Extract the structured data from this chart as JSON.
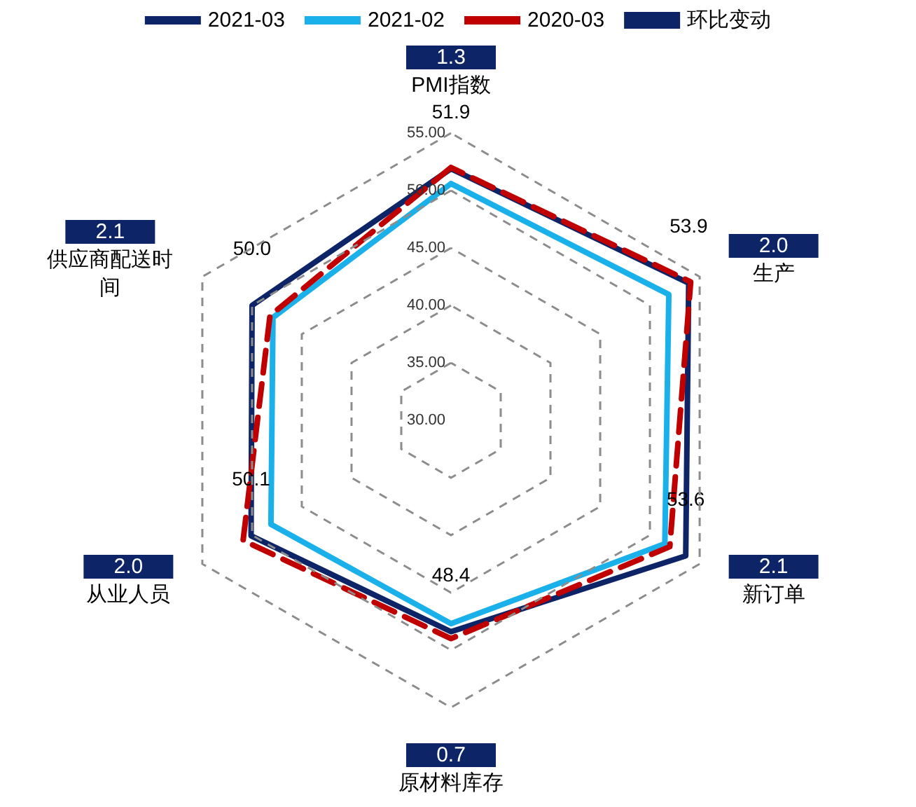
{
  "chart_data": {
    "type": "radar",
    "categories": [
      "PMI指数",
      "生产",
      "新订单",
      "原材料库存",
      "从业人员",
      "供应商配送时间"
    ],
    "series": [
      {
        "name": "2021-03",
        "color": "#0d2566",
        "values": [
          51.9,
          53.9,
          53.6,
          48.4,
          50.1,
          50.0
        ],
        "value_labels": [
          "51.9",
          "53.9",
          "53.6",
          "48.4",
          "50.1",
          "50.0"
        ],
        "line_style": "solid"
      },
      {
        "name": "2021-02",
        "color": "#1ab0ea",
        "values": [
          50.6,
          51.9,
          51.5,
          47.7,
          48.1,
          47.9
        ],
        "line_style": "solid"
      },
      {
        "name": "2020-03",
        "color": "#c00000",
        "values": [
          52.0,
          54.1,
          52.0,
          49.0,
          50.9,
          48.2
        ],
        "line_style": "dashed"
      },
      {
        "name": "环比变动",
        "type": "other",
        "color": "#0d2566",
        "values": [
          null,
          null,
          null,
          null,
          null,
          null
        ],
        "value_labels": [
          "1.3",
          "2.0",
          "2.1",
          "0.7",
          "2.0",
          "2.1"
        ]
      }
    ],
    "ylim": [
      30,
      55
    ],
    "yticks": [
      {
        "value": 30,
        "label": "30.00"
      },
      {
        "value": 35,
        "label": "35.00"
      },
      {
        "value": 40,
        "label": "40.00"
      },
      {
        "value": 45,
        "label": "45.00"
      },
      {
        "value": 50,
        "label": "50.00"
      },
      {
        "value": 55,
        "label": "55.00"
      }
    ],
    "grid": true,
    "legend": "top",
    "marker": "none"
  }
}
